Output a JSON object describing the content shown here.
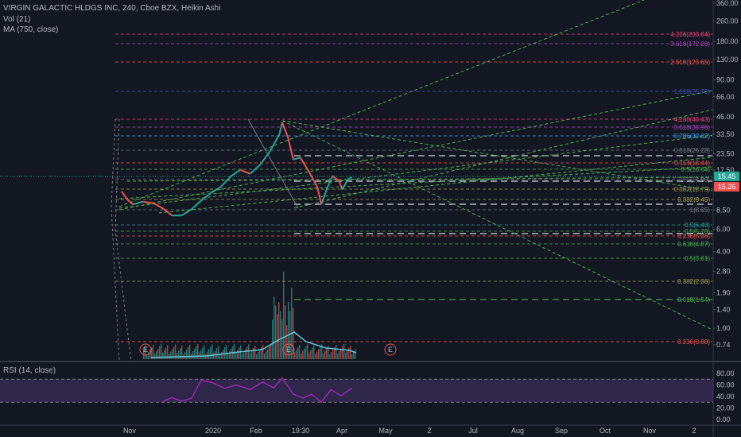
{
  "legend": {
    "title": "VIRGIN GALACTIC HLDGS INC, 240, Cboe BZX, Heikin Ashi",
    "vol": "Vol (21)",
    "ma": "MA (750, close)"
  },
  "rsi_label": "RSI (14, close)",
  "price_tags": [
    {
      "label": "15.45",
      "color": "#26a69a"
    },
    {
      "label": "15.26",
      "color": "#ef5350"
    }
  ],
  "y_axis_ticks": [
    "360.00",
    "260.00",
    "180.00",
    "130.00",
    "90.00",
    "66.00",
    "46.00",
    "33.50",
    "23.50",
    "17.50",
    "12.50",
    "8.50",
    "6.00",
    "4.00",
    "2.80",
    "1.90",
    "1.40",
    "1.00",
    "0.74"
  ],
  "rsi_ticks": [
    "80.00",
    "60.00",
    "40.00",
    "20.00",
    "0.00"
  ],
  "x_axis_ticks": [
    "Nov",
    "2020",
    "Feb",
    "19:30",
    "Apr",
    "May",
    "2",
    "Jul",
    "Aug",
    "Sep",
    "Oct",
    "Nov",
    "2"
  ],
  "fib_labels": [
    {
      "text": "4.236(203.84)",
      "color": "#ec407a"
    },
    {
      "text": "3.618(172.20)",
      "color": "#ab47bc"
    },
    {
      "text": "2.618(123.65)",
      "color": "#ef5350"
    },
    {
      "text": "1.618(75.79)",
      "color": "#3f51b5"
    },
    {
      "text": "4.236(43.43)",
      "color": "#ec407a"
    },
    {
      "text": "3.618(38.96)",
      "color": "#ab47bc"
    },
    {
      "text": "0.786(32.82)",
      "color": "#42a5f5"
    },
    {
      "text": "0.618(26.28)",
      "color": "#787b86"
    },
    {
      "text": "0.114(18.44)",
      "color": "#ef5350"
    },
    {
      "text": "0.5(16.64)",
      "color": "#4caf50"
    },
    {
      "text": "0.5(14.90)",
      "color": "#787b86"
    },
    {
      "text": "0.382(12.79)",
      "color": "#9e9e50"
    },
    {
      "text": "0.382(9.45)",
      "color": "#9e9e50"
    },
    {
      "text": "1(8.95)",
      "color": "#787b86"
    },
    {
      "text": "0.5(6.40)",
      "color": "#26a69a"
    },
    {
      "text": "0.5(5.70)",
      "color": "#4caf50"
    },
    {
      "text": "0.236(5.36)",
      "color": "#ef5350"
    },
    {
      "text": "0.618(4.87)",
      "color": "#4caf50"
    },
    {
      "text": "0.5(3.61)",
      "color": "#4caf50"
    },
    {
      "text": "0.382(2.36)",
      "color": "#9e9e50"
    },
    {
      "text": "0.618(1.54)",
      "color": "#4caf50"
    },
    {
      "text": "0.236(0.80)",
      "color": "#ef5350"
    }
  ],
  "earnings_markers": [
    "E",
    "E",
    "E"
  ],
  "chart_data": {
    "type": "line",
    "title": "VIRGIN GALACTIC HLDGS INC, 240, Cboe BZX, Heikin Ashi",
    "y_scale": "log",
    "ylim": [
      0.68,
      380
    ],
    "last_price": 15.45,
    "ma_value": 15.26,
    "price_series": [
      {
        "x": "2019-10-28",
        "y": 11.9
      },
      {
        "x": "2019-11-01",
        "y": 10.3
      },
      {
        "x": "2019-11-05",
        "y": 9.4
      },
      {
        "x": "2019-11-12",
        "y": 9.9
      },
      {
        "x": "2019-11-20",
        "y": 9.6
      },
      {
        "x": "2019-11-27",
        "y": 8.7
      },
      {
        "x": "2019-12-03",
        "y": 7.7
      },
      {
        "x": "2019-12-10",
        "y": 7.7
      },
      {
        "x": "2019-12-17",
        "y": 8.6
      },
      {
        "x": "2019-12-24",
        "y": 10.1
      },
      {
        "x": "2019-12-31",
        "y": 11.6
      },
      {
        "x": "2020-01-07",
        "y": 12.9
      },
      {
        "x": "2020-01-14",
        "y": 15.6
      },
      {
        "x": "2020-01-21",
        "y": 17.6
      },
      {
        "x": "2020-01-28",
        "y": 16.4
      },
      {
        "x": "2020-02-04",
        "y": 19.2
      },
      {
        "x": "2020-02-11",
        "y": 24.4
      },
      {
        "x": "2020-02-18",
        "y": 33.5
      },
      {
        "x": "2020-02-20",
        "y": 41.5
      },
      {
        "x": "2020-02-24",
        "y": 32.0
      },
      {
        "x": "2020-02-28",
        "y": 21.2
      },
      {
        "x": "2020-03-04",
        "y": 22.0
      },
      {
        "x": "2020-03-10",
        "y": 17.1
      },
      {
        "x": "2020-03-16",
        "y": 13.0
      },
      {
        "x": "2020-03-19",
        "y": 9.4
      },
      {
        "x": "2020-03-23",
        "y": 12.5
      },
      {
        "x": "2020-03-27",
        "y": 15.8
      },
      {
        "x": "2020-04-01",
        "y": 14.2
      },
      {
        "x": "2020-04-03",
        "y": 12.3
      },
      {
        "x": "2020-04-07",
        "y": 14.8
      },
      {
        "x": "2020-04-10",
        "y": 15.45
      }
    ],
    "rsi_series": [
      {
        "x": "2019-11-26",
        "y": 31
      },
      {
        "x": "2019-12-03",
        "y": 38
      },
      {
        "x": "2019-12-10",
        "y": 32
      },
      {
        "x": "2019-12-17",
        "y": 37
      },
      {
        "x": "2019-12-24",
        "y": 68
      },
      {
        "x": "2020-01-01",
        "y": 64
      },
      {
        "x": "2020-01-10",
        "y": 54
      },
      {
        "x": "2020-01-18",
        "y": 60
      },
      {
        "x": "2020-01-28",
        "y": 52
      },
      {
        "x": "2020-02-06",
        "y": 65
      },
      {
        "x": "2020-02-14",
        "y": 55
      },
      {
        "x": "2020-02-20",
        "y": 72
      },
      {
        "x": "2020-02-28",
        "y": 44
      },
      {
        "x": "2020-03-06",
        "y": 37
      },
      {
        "x": "2020-03-12",
        "y": 44
      },
      {
        "x": "2020-03-19",
        "y": 30
      },
      {
        "x": "2020-03-26",
        "y": 52
      },
      {
        "x": "2020-04-02",
        "y": 41
      },
      {
        "x": "2020-04-10",
        "y": 55
      }
    ],
    "rsi_ylim": [
      0,
      100
    ],
    "rsi_bands": [
      70,
      30
    ]
  }
}
